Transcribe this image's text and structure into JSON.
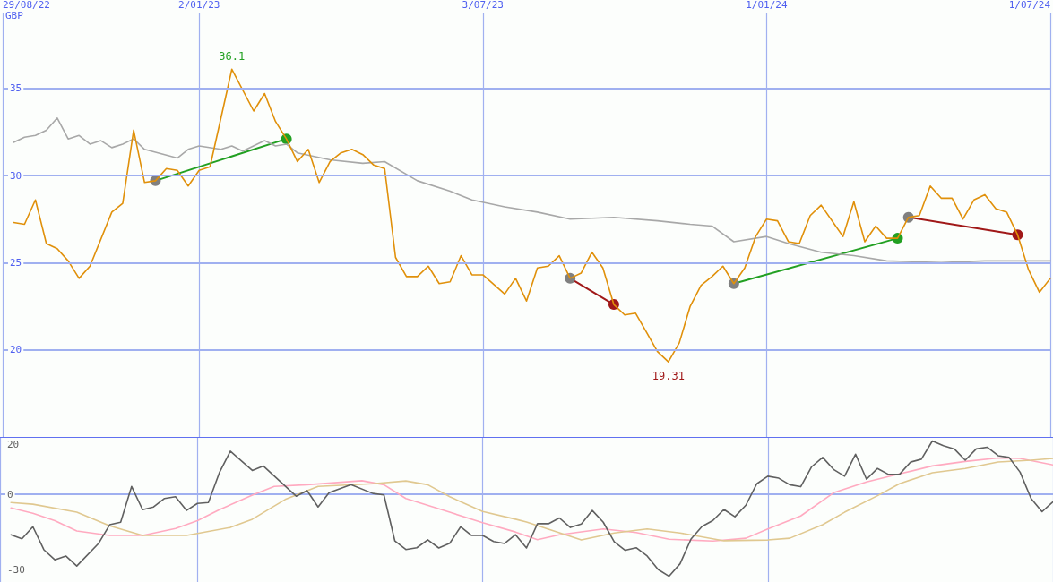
{
  "chart_data": [
    {
      "type": "line",
      "ylabel": "GBP",
      "xlim": [
        "2022-08-29",
        "2024-07-01"
      ],
      "xticks": [
        {
          "value": "2022-08-29",
          "label": "29/08/22"
        },
        {
          "value": "2023-01-02",
          "label": "2/01/23"
        },
        {
          "value": "2023-07-03",
          "label": "3/07/23"
        },
        {
          "value": "2024-01-01",
          "label": "1/01/24"
        },
        {
          "value": "2024-07-01",
          "label": "1/07/24"
        }
      ],
      "ylim": [
        15,
        39.3
      ],
      "yticks": [
        20,
        25,
        30,
        35
      ],
      "grid": true,
      "marker": "none",
      "annotations": [
        {
          "text": "36.1",
          "x": "2023-01-23",
          "y": 36.1
        },
        {
          "text": "19.31",
          "x": "2023-10-30",
          "y": 19.31
        }
      ],
      "series": [
        {
          "color": "#a8a8a8",
          "x": [
            "2022-09-05",
            "2022-09-12",
            "2022-09-19",
            "2022-09-26",
            "2022-10-03",
            "2022-10-10",
            "2022-10-17",
            "2022-10-24",
            "2022-10-31",
            "2022-11-07",
            "2022-11-14",
            "2022-11-21",
            "2022-11-28",
            "2022-12-19",
            "2022-12-26",
            "2023-01-02",
            "2023-01-16",
            "2023-01-23",
            "2023-01-30",
            "2023-02-13",
            "2023-02-20",
            "2023-02-27",
            "2023-03-06",
            "2023-03-27",
            "2023-04-17",
            "2023-05-01",
            "2023-05-22",
            "2023-06-12",
            "2023-06-26",
            "2023-07-17",
            "2023-08-07",
            "2023-08-28",
            "2023-09-25",
            "2023-10-23",
            "2023-11-13",
            "2023-11-27",
            "2023-12-11",
            "2024-01-01",
            "2024-01-15",
            "2024-02-05",
            "2024-02-26",
            "2024-03-18",
            "2024-04-22",
            "2024-05-20",
            "2024-07-01"
          ],
          "values": [
            31.9,
            32.2,
            32.3,
            32.6,
            33.3,
            32.1,
            32.3,
            31.8,
            32.0,
            31.6,
            31.8,
            32.1,
            31.5,
            31.0,
            31.5,
            31.7,
            31.5,
            31.7,
            31.4,
            32.0,
            31.7,
            31.8,
            31.3,
            30.9,
            30.7,
            30.8,
            29.7,
            29.1,
            28.6,
            28.2,
            27.9,
            27.5,
            27.6,
            27.4,
            27.2,
            27.1,
            26.2,
            26.5,
            26.1,
            25.6,
            25.4,
            25.1,
            25.0,
            25.1,
            25.1
          ]
        },
        {
          "color": "#e0900a",
          "x": [
            "2022-09-05",
            "2022-09-12",
            "2022-09-19",
            "2022-09-26",
            "2022-10-03",
            "2022-10-10",
            "2022-10-17",
            "2022-10-24",
            "2022-11-07",
            "2022-11-14",
            "2022-11-21",
            "2022-11-28",
            "2022-12-05",
            "2022-12-12",
            "2022-12-19",
            "2022-12-26",
            "2023-01-02",
            "2023-01-09",
            "2023-01-23",
            "2023-02-06",
            "2023-02-13",
            "2023-02-20",
            "2023-02-27",
            "2023-03-06",
            "2023-03-13",
            "2023-03-20",
            "2023-03-27",
            "2023-04-03",
            "2023-04-10",
            "2023-04-17",
            "2023-04-24",
            "2023-05-01",
            "2023-05-08",
            "2023-05-15",
            "2023-05-22",
            "2023-05-29",
            "2023-06-05",
            "2023-06-12",
            "2023-06-19",
            "2023-06-26",
            "2023-07-03",
            "2023-07-17",
            "2023-07-24",
            "2023-07-31",
            "2023-08-07",
            "2023-08-14",
            "2023-08-21",
            "2023-08-28",
            "2023-09-04",
            "2023-09-11",
            "2023-09-18",
            "2023-09-25",
            "2023-10-02",
            "2023-10-09",
            "2023-10-16",
            "2023-10-23",
            "2023-10-30",
            "2023-11-06",
            "2023-11-13",
            "2023-11-20",
            "2023-11-27",
            "2023-12-04",
            "2023-12-11",
            "2023-12-18",
            "2023-12-25",
            "2024-01-01",
            "2024-01-08",
            "2024-01-15",
            "2024-01-22",
            "2024-01-29",
            "2024-02-05",
            "2024-02-19",
            "2024-02-26",
            "2024-03-04",
            "2024-03-11",
            "2024-03-18",
            "2024-03-25",
            "2024-04-01",
            "2024-04-08",
            "2024-04-15",
            "2024-04-22",
            "2024-04-29",
            "2024-05-06",
            "2024-05-13",
            "2024-05-20",
            "2024-05-27",
            "2024-06-03",
            "2024-06-10",
            "2024-06-17",
            "2024-06-24",
            "2024-07-01"
          ],
          "values": [
            27.3,
            27.2,
            28.6,
            26.1,
            25.8,
            25.1,
            24.1,
            24.8,
            27.9,
            28.4,
            32.6,
            29.6,
            29.7,
            30.4,
            30.3,
            29.4,
            30.3,
            30.5,
            36.1,
            33.7,
            34.7,
            33.1,
            32.1,
            30.8,
            31.5,
            29.6,
            30.8,
            31.3,
            31.5,
            31.2,
            30.6,
            30.4,
            25.3,
            24.2,
            24.2,
            24.8,
            23.8,
            23.9,
            25.4,
            24.3,
            24.3,
            23.2,
            24.1,
            22.8,
            24.7,
            24.8,
            25.4,
            24.1,
            24.4,
            25.6,
            24.7,
            22.6,
            22.0,
            22.1,
            21.0,
            19.9,
            19.31,
            20.4,
            22.5,
            23.7,
            24.2,
            24.8,
            23.8,
            24.7,
            26.5,
            27.5,
            27.4,
            26.2,
            26.1,
            27.7,
            28.3,
            26.5,
            28.5,
            26.2,
            27.1,
            26.4,
            26.4,
            27.6,
            27.7,
            29.4,
            28.7,
            28.7,
            27.5,
            28.6,
            28.9,
            28.1,
            27.9,
            26.6,
            24.6,
            23.3,
            24.1
          ]
        },
        {
          "color": "#22a022",
          "marker": "circle",
          "x": [
            "2022-12-05",
            "2023-02-27"
          ],
          "values": [
            29.7,
            32.1
          ],
          "colors": [
            "#808080",
            "#22a022"
          ]
        },
        {
          "color": "#a01818",
          "marker": "circle",
          "x": [
            "2023-08-28",
            "2023-09-25"
          ],
          "values": [
            24.1,
            22.6
          ],
          "colors": [
            "#808080",
            "#a01818"
          ]
        },
        {
          "color": "#22a022",
          "marker": "circle",
          "x": [
            "2023-12-11",
            "2024-03-25"
          ],
          "values": [
            23.8,
            26.4
          ],
          "colors": [
            "#808080",
            "#22a022"
          ]
        },
        {
          "color": "#a01818",
          "marker": "circle",
          "x": [
            "2024-04-01",
            "2024-06-10"
          ],
          "values": [
            27.6,
            26.6
          ],
          "colors": [
            "#808080",
            "#a01818"
          ]
        }
      ]
    },
    {
      "type": "line",
      "xlim": [
        "2022-08-29",
        "2024-07-01"
      ],
      "xticks": [
        {
          "value": "2022-08-29",
          "label": null
        },
        {
          "value": "2023-01-02",
          "label": null
        },
        {
          "value": "2023-07-03",
          "label": null
        },
        {
          "value": "2024-01-01",
          "label": null
        },
        {
          "value": "2024-07-01",
          "label": null
        }
      ],
      "ylim": [
        -35,
        23
      ],
      "yticks": [
        -30,
        0,
        20
      ],
      "grid": "x",
      "tick_labels": "y",
      "marker": "none",
      "ref_lines": [
        {
          "axis": "y",
          "value": 0,
          "color": "#a0b0f0"
        }
      ],
      "series": [
        {
          "color": "#ffaac0",
          "x": [
            "2022-09-05",
            "2022-09-19",
            "2022-10-03",
            "2022-10-17",
            "2022-11-07",
            "2022-11-28",
            "2022-12-19",
            "2023-01-02",
            "2023-01-16",
            "2023-02-06",
            "2023-02-20",
            "2023-03-13",
            "2023-04-17",
            "2023-05-01",
            "2023-05-15",
            "2023-06-12",
            "2023-07-03",
            "2023-07-24",
            "2023-08-07",
            "2023-08-21",
            "2023-09-18",
            "2023-10-09",
            "2023-10-30",
            "2023-11-27",
            "2023-12-18",
            "2024-01-01",
            "2024-01-22",
            "2024-02-12",
            "2024-03-04",
            "2024-03-25",
            "2024-04-15",
            "2024-05-06",
            "2024-05-27",
            "2024-06-10",
            "2024-07-01"
          ],
          "values": [
            -5.4,
            -7.5,
            -10.5,
            -14.6,
            -16.4,
            -16.4,
            -13.6,
            -10.5,
            -6.1,
            -0.3,
            3.2,
            3.9,
            5.5,
            3.9,
            -1.6,
            -7.1,
            -11.3,
            -15.0,
            -18.1,
            -16.1,
            -13.8,
            -15.2,
            -17.9,
            -18.6,
            -17.5,
            -13.8,
            -8.6,
            0.7,
            5.0,
            8.2,
            11.4,
            13.2,
            14.6,
            14.4,
            11.8
          ]
        },
        {
          "color": "#e0c890",
          "x": [
            "2022-09-05",
            "2022-09-19",
            "2022-10-17",
            "2022-11-07",
            "2022-11-28",
            "2022-12-26",
            "2023-01-23",
            "2023-02-06",
            "2023-02-27",
            "2023-03-20",
            "2023-04-24",
            "2023-05-15",
            "2023-05-29",
            "2023-06-12",
            "2023-07-03",
            "2023-07-24",
            "2023-07-31",
            "2023-09-04",
            "2023-09-25",
            "2023-10-16",
            "2023-11-06",
            "2023-12-04",
            "2024-01-01",
            "2024-01-15",
            "2024-02-05",
            "2024-02-19",
            "2024-03-11",
            "2024-03-25",
            "2024-04-15",
            "2024-05-06",
            "2024-05-27",
            "2024-06-17",
            "2024-07-01"
          ],
          "values": [
            -3.2,
            -3.9,
            -7.1,
            -12.5,
            -16.4,
            -16.4,
            -13.2,
            -9.9,
            -2.0,
            3.2,
            4.3,
            5.4,
            3.9,
            -0.9,
            -6.8,
            -9.9,
            -11.0,
            -18.2,
            -15.4,
            -13.8,
            -15.4,
            -18.5,
            -18.2,
            -17.5,
            -12.1,
            -7.1,
            -0.5,
            4.3,
            8.7,
            10.4,
            13.0,
            13.7,
            14.4
          ]
        },
        {
          "color": "#606060",
          "x": [
            "2022-09-05",
            "2022-09-12",
            "2022-09-19",
            "2022-09-26",
            "2022-10-03",
            "2022-10-10",
            "2022-10-17",
            "2022-10-31",
            "2022-11-07",
            "2022-11-14",
            "2022-11-21",
            "2022-11-28",
            "2022-12-05",
            "2022-12-12",
            "2022-12-19",
            "2022-12-26",
            "2023-01-02",
            "2023-01-09",
            "2023-01-16",
            "2023-01-23",
            "2023-02-06",
            "2023-02-13",
            "2023-03-06",
            "2023-03-13",
            "2023-03-20",
            "2023-03-27",
            "2023-04-10",
            "2023-04-24",
            "2023-05-01",
            "2023-05-08",
            "2023-05-15",
            "2023-05-22",
            "2023-05-29",
            "2023-06-05",
            "2023-06-12",
            "2023-06-19",
            "2023-06-26",
            "2023-07-03",
            "2023-07-10",
            "2023-07-17",
            "2023-07-24",
            "2023-07-31",
            "2023-08-07",
            "2023-08-14",
            "2023-08-21",
            "2023-08-28",
            "2023-09-04",
            "2023-09-11",
            "2023-09-18",
            "2023-09-25",
            "2023-10-02",
            "2023-10-09",
            "2023-10-16",
            "2023-10-23",
            "2023-10-30",
            "2023-11-06",
            "2023-11-13",
            "2023-11-20",
            "2023-11-27",
            "2023-12-04",
            "2023-12-11",
            "2023-12-18",
            "2023-12-25",
            "2024-01-01",
            "2024-01-08",
            "2024-01-15",
            "2024-01-22",
            "2024-01-29",
            "2024-02-05",
            "2024-02-12",
            "2024-02-19",
            "2024-02-26",
            "2024-03-04",
            "2024-03-11",
            "2024-03-18",
            "2024-03-25",
            "2024-04-01",
            "2024-04-08",
            "2024-04-15",
            "2024-04-22",
            "2024-04-29",
            "2024-05-06",
            "2024-05-13",
            "2024-05-20",
            "2024-05-27",
            "2024-06-03",
            "2024-06-10",
            "2024-06-17",
            "2024-06-24",
            "2024-07-01"
          ],
          "values": [
            -16.1,
            -17.7,
            -12.9,
            -22.1,
            -26.1,
            -24.6,
            -28.6,
            -19.5,
            -12.1,
            -11.1,
            3.2,
            -6.1,
            -5.0,
            -1.6,
            -0.9,
            -6.4,
            -3.6,
            -3.2,
            8.7,
            17.3,
            9.6,
            11.4,
            -0.7,
            1.5,
            -5.0,
            0.7,
            3.9,
            0.4,
            -0.2,
            -18.6,
            -22.0,
            -21.3,
            -18.1,
            -21.4,
            -19.5,
            -12.9,
            -16.4,
            -16.4,
            -18.8,
            -19.6,
            -16.1,
            -21.4,
            -11.7,
            -11.7,
            -9.4,
            -13.2,
            -11.8,
            -6.4,
            -11.1,
            -18.9,
            -22.3,
            -21.3,
            -24.6,
            -30.0,
            -32.7,
            -27.7,
            -17.8,
            -12.8,
            -10.4,
            -6.0,
            -8.9,
            -4.3,
            4.3,
            7.3,
            6.5,
            3.9,
            3.1,
            11.1,
            14.8,
            10.0,
            7.3,
            16.1,
            6.1,
            10.4,
            8.0,
            8.0,
            12.9,
            14.1,
            21.4,
            19.5,
            18.2,
            13.7,
            18.2,
            18.9,
            15.5,
            14.8,
            8.9,
            -1.6,
            -6.9,
            -2.9
          ]
        }
      ]
    }
  ]
}
